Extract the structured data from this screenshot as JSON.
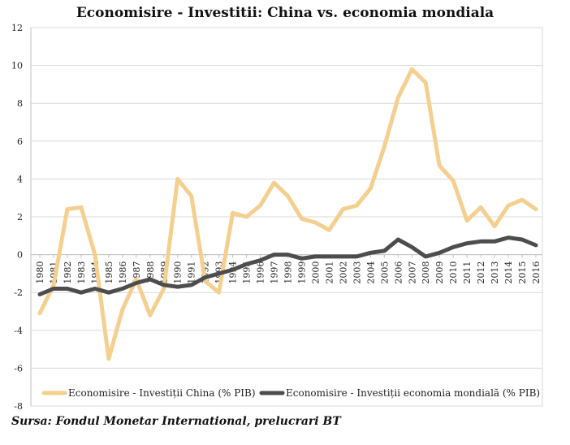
{
  "chart_data": {
    "type": "line",
    "title": "Economisire - Investitii: China vs. economia mondiala",
    "xlabel": "",
    "ylabel": "",
    "ylim": [
      -8,
      12
    ],
    "yticks": [
      -8,
      -6,
      -4,
      -2,
      0,
      2,
      4,
      6,
      8,
      10,
      12
    ],
    "grid": "horizontal",
    "legend_position": "bottom",
    "x": [
      "1980",
      "1981",
      "1982",
      "1983",
      "1984",
      "1985",
      "1986",
      "1987",
      "1988",
      "1989",
      "1990",
      "1991",
      "1992",
      "1993",
      "1994",
      "1995",
      "1996",
      "1997",
      "1998",
      "1999",
      "2000",
      "2001",
      "2002",
      "2003",
      "2004",
      "2005",
      "2006",
      "2007",
      "2008",
      "2009",
      "2010",
      "2011",
      "2012",
      "2013",
      "2014",
      "2015",
      "2016"
    ],
    "series": [
      {
        "name": "Economisire - Investiții China (% PIB)",
        "color": "#f4cf8f",
        "values": [
          -3.1,
          -1.6,
          2.4,
          2.5,
          0.0,
          -5.5,
          -2.9,
          -1.3,
          -3.2,
          -1.8,
          4.0,
          3.1,
          -1.4,
          -2.0,
          2.2,
          2.0,
          2.6,
          3.8,
          3.1,
          1.9,
          1.7,
          1.3,
          2.4,
          2.6,
          3.5,
          5.7,
          8.3,
          9.8,
          9.1,
          4.7,
          3.9,
          1.8,
          2.5,
          1.5,
          2.6,
          2.9,
          2.4
        ]
      },
      {
        "name": "Economisire - Investiții economia mondială (% PIB)",
        "color": "#4d4d4d",
        "values": [
          -2.1,
          -1.8,
          -1.8,
          -2.0,
          -1.8,
          -2.0,
          -1.8,
          -1.5,
          -1.3,
          -1.6,
          -1.7,
          -1.6,
          -1.2,
          -1.0,
          -0.8,
          -0.5,
          -0.3,
          0.0,
          0.0,
          -0.2,
          -0.1,
          -0.1,
          -0.1,
          -0.1,
          0.1,
          0.2,
          0.8,
          0.4,
          -0.1,
          0.1,
          0.4,
          0.6,
          0.7,
          0.7,
          0.9,
          0.8,
          0.5
        ]
      }
    ]
  },
  "source": "Sursa: Fondul Monetar International, prelucrari BT"
}
